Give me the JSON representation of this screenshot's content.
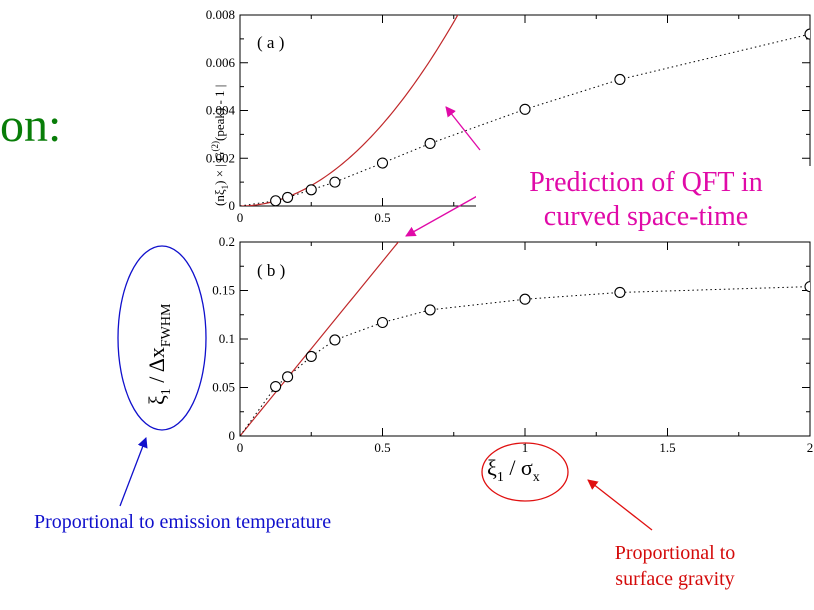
{
  "slide": {
    "fragment_text": "on:"
  },
  "chart_data": [
    {
      "type": "scatter",
      "panel_label": "( a )",
      "ylabel_base": "(nξ",
      "ylabel_sub": "1",
      "ylabel_mid": ") × | G",
      "ylabel_sup": "(2)",
      "ylabel_end": "(peak) - 1 |",
      "xlim": [
        0,
        2
      ],
      "ylim": [
        0,
        0.008
      ],
      "xticks": [
        "0",
        "0.5"
      ],
      "yticks": [
        "0",
        "0.002",
        "0.004",
        "0.006",
        "0.008"
      ],
      "points": [
        {
          "x": 0.125,
          "y": 0.00022
        },
        {
          "x": 0.167,
          "y": 0.00036
        },
        {
          "x": 0.25,
          "y": 0.00068
        },
        {
          "x": 0.333,
          "y": 0.001
        },
        {
          "x": 0.5,
          "y": 0.0018
        },
        {
          "x": 0.667,
          "y": 0.00262
        },
        {
          "x": 1.0,
          "y": 0.00405
        },
        {
          "x": 1.333,
          "y": 0.0053
        },
        {
          "x": 2.0,
          "y": 0.0072
        }
      ],
      "theory_curve": {
        "form": "quadratic",
        "coefficient": 0.0137,
        "color": "#c0282a"
      },
      "grid": false
    },
    {
      "type": "scatter",
      "panel_label": "( b )",
      "ylabel_base": "ξ",
      "ylabel_sub": "1",
      "ylabel_mid": " / Δx",
      "ylabel_sub2": "FWHM",
      "xlabel_base": "ξ",
      "xlabel_sub": "1",
      "xlabel_mid": " / σ",
      "xlabel_sub2": "x",
      "xlim": [
        0,
        2
      ],
      "ylim": [
        0,
        0.2
      ],
      "xticks": [
        "0",
        "0.5",
        "1",
        "1.5",
        "2"
      ],
      "yticks": [
        "0",
        "0.05",
        "0.1",
        "0.15",
        "0.2"
      ],
      "points": [
        {
          "x": 0.125,
          "y": 0.051
        },
        {
          "x": 0.167,
          "y": 0.061
        },
        {
          "x": 0.25,
          "y": 0.082
        },
        {
          "x": 0.333,
          "y": 0.099
        },
        {
          "x": 0.5,
          "y": 0.117
        },
        {
          "x": 0.667,
          "y": 0.13
        },
        {
          "x": 1.0,
          "y": 0.141
        },
        {
          "x": 1.333,
          "y": 0.148
        },
        {
          "x": 2.0,
          "y": 0.154
        }
      ],
      "theory_curve": {
        "form": "linear",
        "slope": 0.36,
        "color": "#c0282a"
      },
      "grid": false
    }
  ],
  "annotations": {
    "prediction_line1": "Prediction of QFT in",
    "prediction_line2": "curved space-time",
    "temperature": "Proportional to emission temperature",
    "gravity_line1": "Proportional to",
    "gravity_line2": "surface gravity"
  },
  "colors": {
    "prediction": "#e00aa8",
    "temperature": "#1010cc",
    "gravity": "#d40b0b",
    "fragment": "#087d08",
    "theory_curve": "#c0282a",
    "data_points": "#000000"
  }
}
